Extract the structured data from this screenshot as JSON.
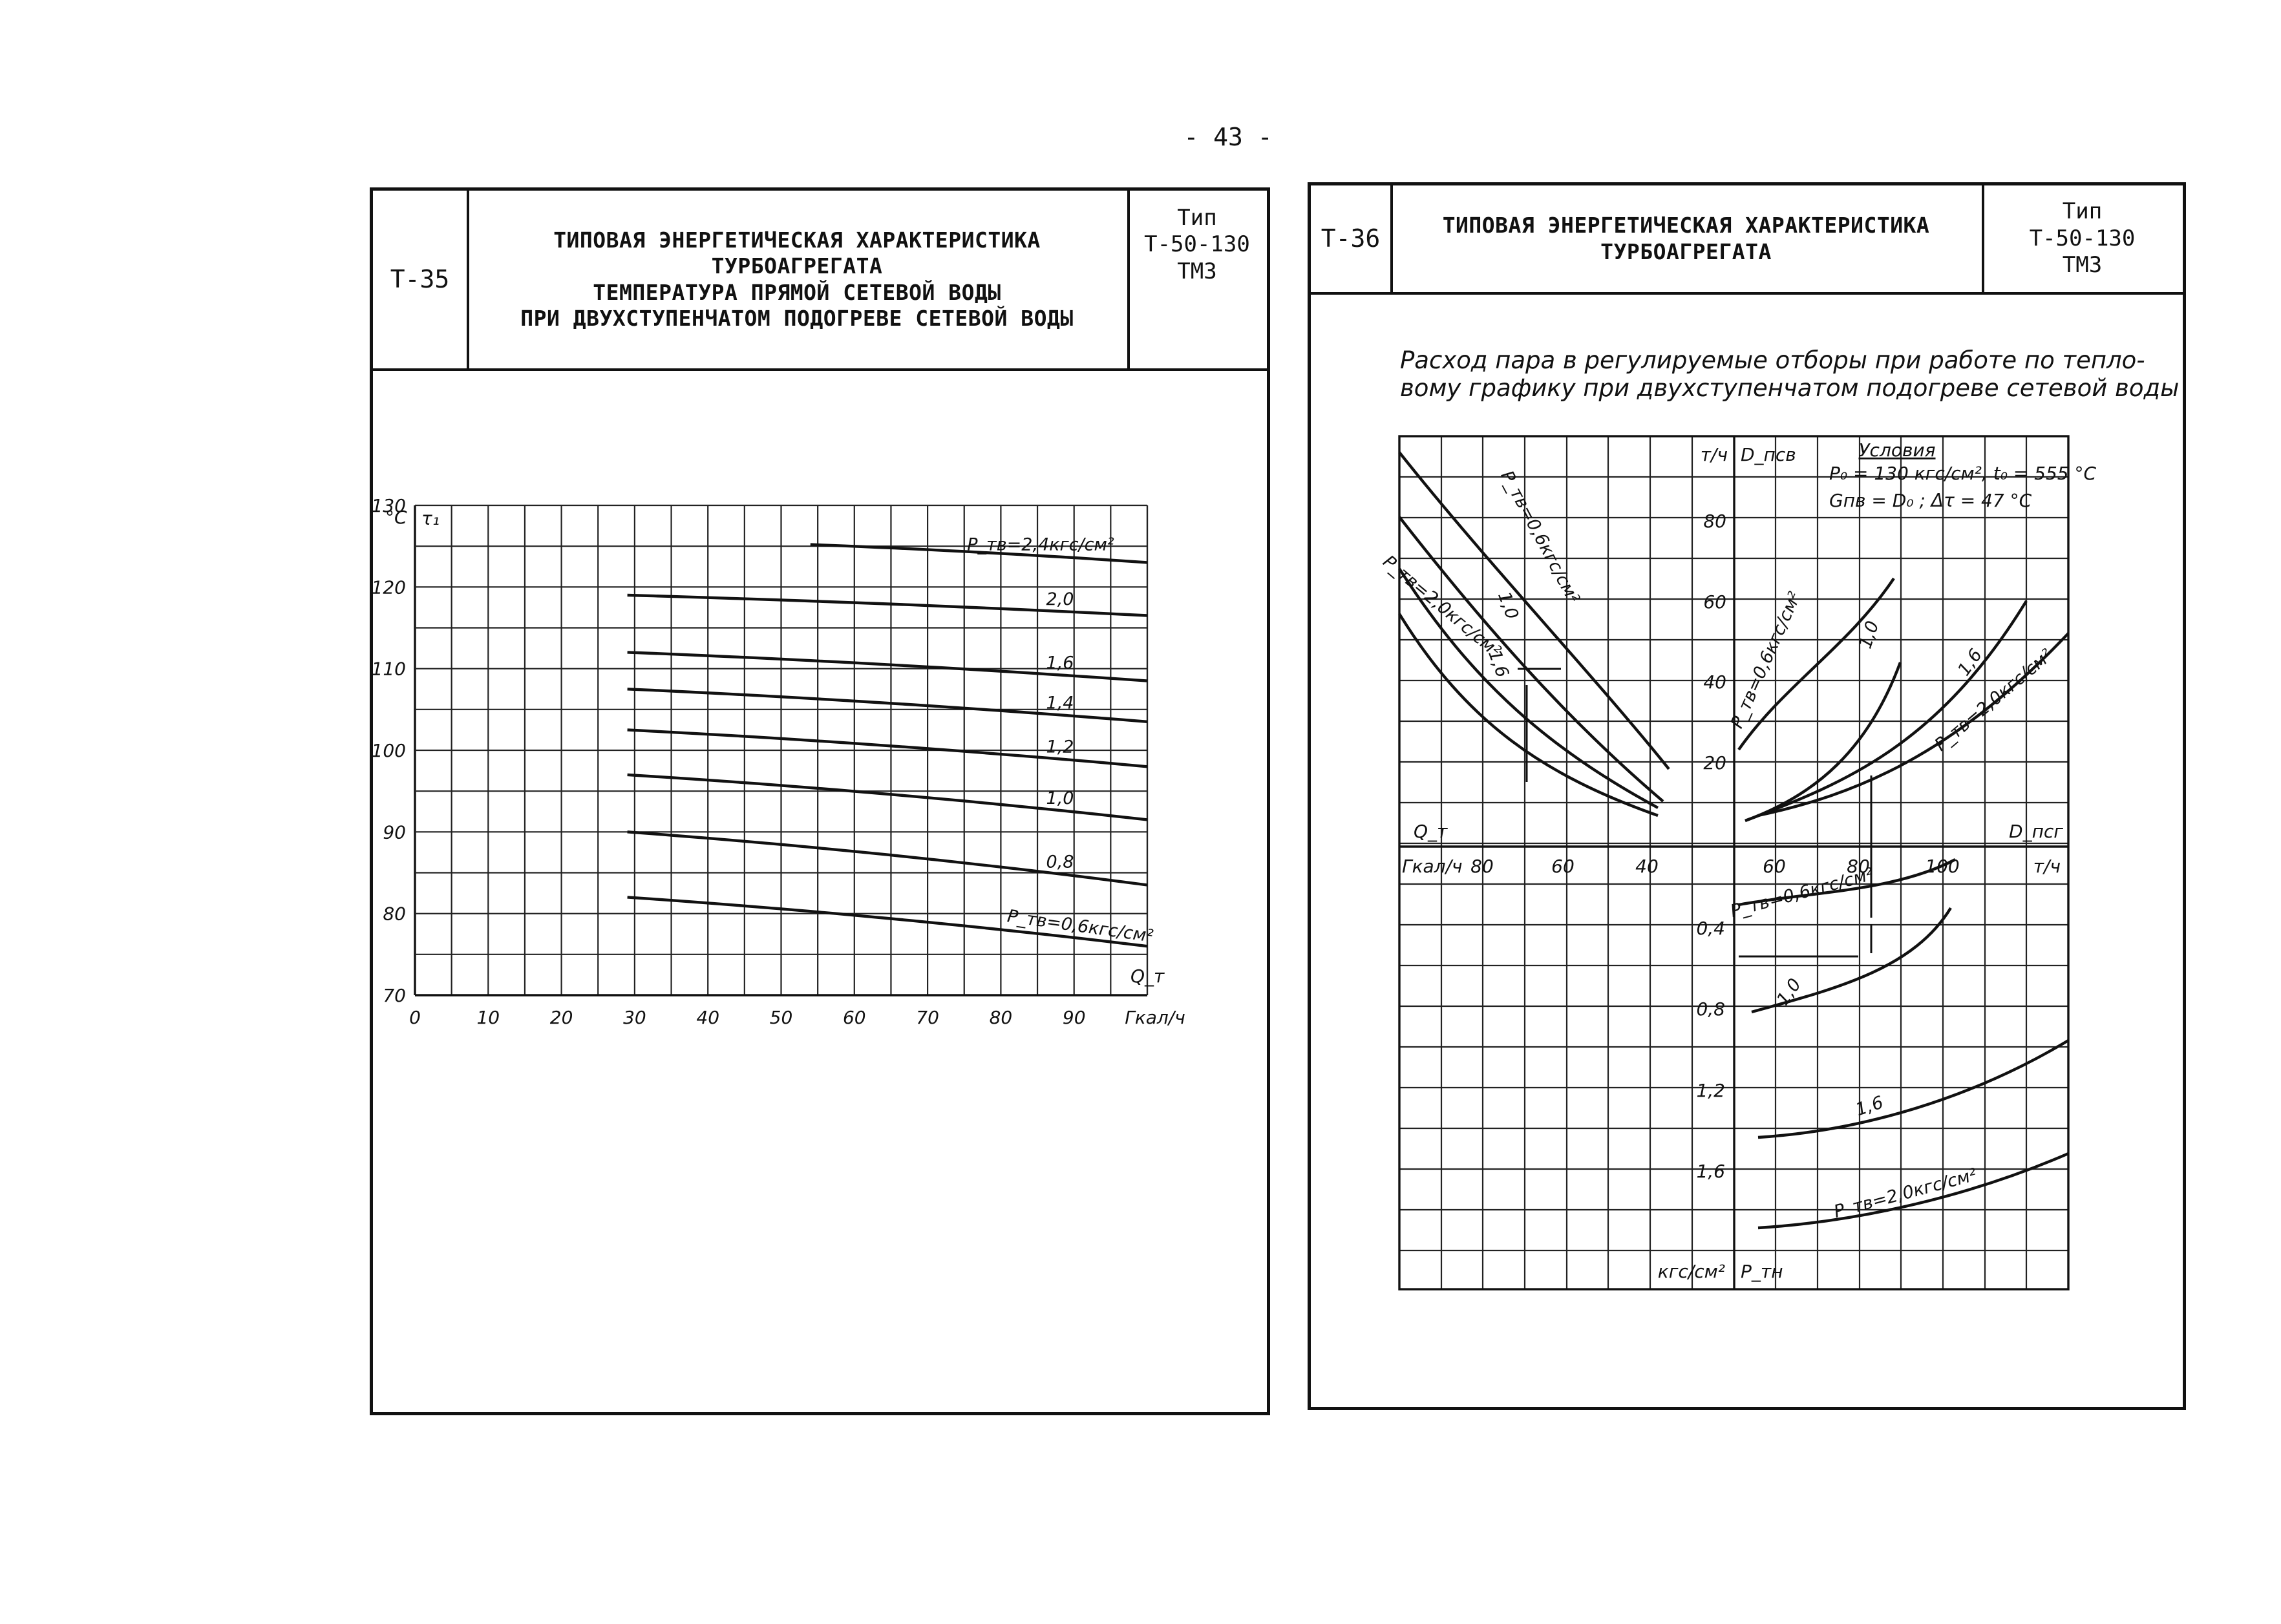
{
  "page_number": "- 43 -",
  "left_sheet": {
    "code": "Т-35",
    "title_lines": [
      "ТИПОВАЯ ЭНЕРГЕТИЧЕСКАЯ ХАРАКТЕРИСТИКА",
      "ТУРБОАГРЕГАТА",
      "ТЕМПЕРАТУРА ПРЯМОЙ СЕТЕВОЙ ВОДЫ",
      "ПРИ ДВУХСТУПЕНЧАТОМ ПОДОГРЕВЕ СЕТЕВОЙ ВОДЫ"
    ],
    "type_lines": [
      "Тип",
      "Т-50-130",
      "ТМЗ"
    ]
  },
  "right_sheet": {
    "code": "Т-36",
    "title_lines": [
      "ТИПОВАЯ ЭНЕРГЕТИЧЕСКАЯ ХАРАКТЕРИСТИКА",
      "ТУРБОАГРЕГАТА"
    ],
    "type_lines": [
      "Тип",
      "Т-50-130",
      "ТМЗ"
    ],
    "caption_lines": [
      "Расход пара в регулируемые отборы при работе по тепло-",
      "вому графику при двухступенчатом подогреве сетевой воды"
    ]
  },
  "chart_data": [
    {
      "type": "line",
      "ylabel_unit": "°C",
      "ylabel": "τ₁",
      "xlabel": "Q_т",
      "xlabel_unit": "Гкал/ч",
      "xlim": [
        0,
        100
      ],
      "ylim": [
        70,
        130
      ],
      "x_ticks": [
        "0",
        "10",
        "20",
        "30",
        "40",
        "50",
        "60",
        "70",
        "80",
        "90"
      ],
      "y_ticks": [
        "130",
        "120",
        "110",
        "100",
        "90",
        "80",
        "70"
      ],
      "series": [
        {
          "name": "P_тв=2,4кгс/см²",
          "x": [
            54,
            100
          ],
          "y": [
            125.2,
            123
          ]
        },
        {
          "name": "2,0",
          "x": [
            29,
            100
          ],
          "y": [
            119,
            116.5
          ]
        },
        {
          "name": "1,6",
          "x": [
            29,
            100
          ],
          "y": [
            112,
            108.5
          ]
        },
        {
          "name": "1,4",
          "x": [
            29,
            100
          ],
          "y": [
            107.5,
            103.5
          ]
        },
        {
          "name": "1,2",
          "x": [
            29,
            100
          ],
          "y": [
            102.5,
            98
          ]
        },
        {
          "name": "1,0",
          "x": [
            29,
            100
          ],
          "y": [
            97,
            91.5
          ]
        },
        {
          "name": "0,8",
          "x": [
            29,
            100
          ],
          "y": [
            90,
            83.5
          ]
        },
        {
          "name": "P_тв=0,6кгс/см²",
          "x": [
            29,
            100
          ],
          "y": [
            82,
            76
          ]
        }
      ]
    },
    {
      "type": "line",
      "conditions": {
        "title": "Условия",
        "line1": "P₀ = 130 кгс/см², t₀ = 555 °С",
        "line2": "Gпв = D₀ ; Δτ = 47 °С"
      },
      "labels": {
        "top_unit": "т/ч",
        "top_var": "D_псв",
        "left_var": "Q_т",
        "left_unit": "Гкал/ч",
        "right_var": "D_псг",
        "right_unit": "т/ч",
        "bottom_unit": "кгс/см²",
        "bottom_var": "P_тн"
      },
      "q_ticks": [
        "80",
        "60",
        "40"
      ],
      "d_top_ticks": [
        "80",
        "60",
        "40",
        "20"
      ],
      "d_right_ticks": [
        "60",
        "80",
        "100"
      ],
      "p_ticks": [
        "0,4",
        "0,8",
        "1,2",
        "1,6"
      ],
      "curve_labels": [
        "P_тв=0,6кгс/см²",
        "1,0",
        "1,6",
        "P_тв=2,0кгс/см²",
        "P_тв=0,6кгс/см²",
        "1,0",
        "1,6",
        "P_тв=2,0кгс/см²",
        "P_тв=0,6кгс/см²",
        "1,0",
        "1,6",
        "P_тв=2,0кгс/см²"
      ]
    }
  ]
}
